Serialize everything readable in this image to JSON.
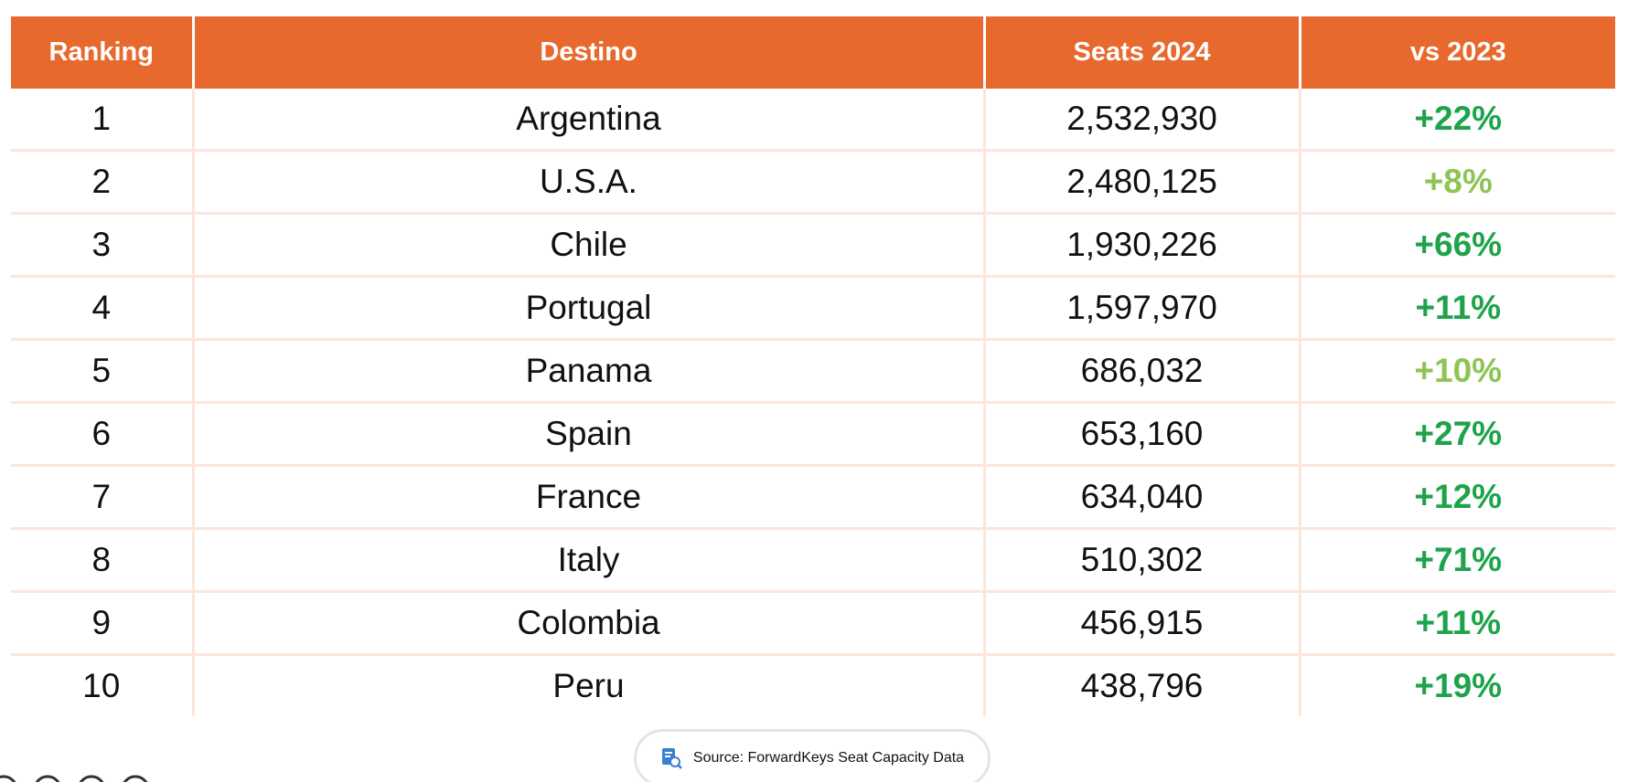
{
  "table": {
    "header": [
      "Ranking",
      "Destino",
      "Seats 2024",
      "vs 2023"
    ],
    "rows": [
      {
        "ranking": "1",
        "destino": "Argentina",
        "seats": "2,532,930",
        "change": "+22%",
        "change_color": "#1ea34b"
      },
      {
        "ranking": "2",
        "destino": "U.S.A.",
        "seats": "2,480,125",
        "change": "+8%",
        "change_color": "#8dc455"
      },
      {
        "ranking": "3",
        "destino": "Chile",
        "seats": "1,930,226",
        "change": "+66%",
        "change_color": "#1ea34b"
      },
      {
        "ranking": "4",
        "destino": "Portugal",
        "seats": "1,597,970",
        "change": "+11%",
        "change_color": "#1ea34b"
      },
      {
        "ranking": "5",
        "destino": "Panama",
        "seats": "686,032",
        "change": "+10%",
        "change_color": "#8dc455"
      },
      {
        "ranking": "6",
        "destino": "Spain",
        "seats": "653,160",
        "change": "+27%",
        "change_color": "#1ea34b"
      },
      {
        "ranking": "7",
        "destino": "France",
        "seats": "634,040",
        "change": "+12%",
        "change_color": "#1ea34b"
      },
      {
        "ranking": "8",
        "destino": "Italy",
        "seats": "510,302",
        "change": "+71%",
        "change_color": "#1ea34b"
      },
      {
        "ranking": "9",
        "destino": "Colombia",
        "seats": "456,915",
        "change": "+11%",
        "change_color": "#1ea34b"
      },
      {
        "ranking": "10",
        "destino": "Peru",
        "seats": "438,796",
        "change": "+19%",
        "change_color": "#1ea34b"
      }
    ]
  },
  "source": "Source: ForwardKeys Seat Capacity Data"
}
